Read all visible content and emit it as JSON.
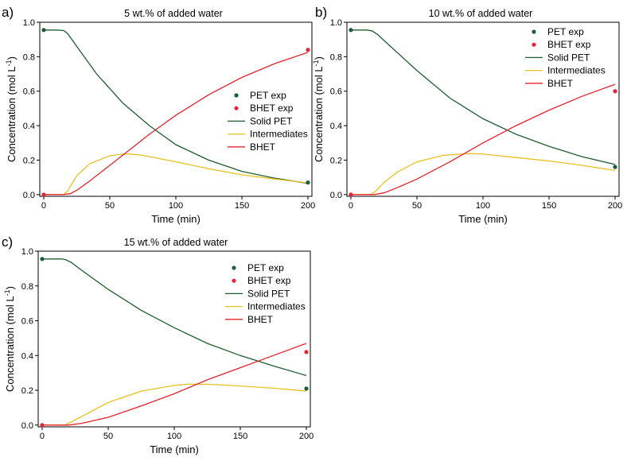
{
  "series_styles": {
    "pet_exp": {
      "color": "#1b5e3b"
    },
    "bhet_exp": {
      "color": "#e32636"
    },
    "solid_pet": {
      "color": "#1e5e2e"
    },
    "intermediates": {
      "color": "#e8c020"
    },
    "bhet": {
      "color": "#e3242b"
    }
  },
  "chart_data": [
    {
      "type": "line",
      "panel": "a)",
      "title": "5 wt.% of added water",
      "xlabel": "Time (min)",
      "ylabel": "Concentration (mol L",
      "ylabel_sup": "-1",
      "ylabel_end": ")",
      "xlim": [
        -3,
        203
      ],
      "ylim": [
        -0.01,
        1.0
      ],
      "xticks": [
        0,
        50,
        100,
        150,
        200
      ],
      "xtick_labels": [
        "0",
        "50",
        "100",
        "150",
        "200"
      ],
      "yticks": [
        0.0,
        0.2,
        0.4,
        0.6,
        0.8,
        1.0
      ],
      "ytick_labels": [
        "0.0",
        "0.2",
        "0.4",
        "0.6",
        "0.8",
        "1.0"
      ],
      "legend": [
        "PET exp",
        "BHET exp",
        "Solid PET",
        "Intermediates",
        "BHET"
      ],
      "series": [
        {
          "name": "PET exp",
          "kind": "scatter",
          "style": "pet_exp",
          "x": [
            0,
            200
          ],
          "y": [
            0.955,
            0.07
          ]
        },
        {
          "name": "BHET exp",
          "kind": "scatter",
          "style": "bhet_exp",
          "x": [
            0,
            200
          ],
          "y": [
            0.0,
            0.84
          ]
        },
        {
          "name": "Solid PET",
          "kind": "line",
          "style": "solid_pet",
          "x": [
            0,
            10,
            15,
            18,
            25,
            40,
            60,
            80,
            100,
            125,
            150,
            175,
            200
          ],
          "y": [
            0.955,
            0.955,
            0.952,
            0.935,
            0.86,
            0.7,
            0.53,
            0.4,
            0.29,
            0.2,
            0.135,
            0.095,
            0.065
          ]
        },
        {
          "name": "Intermediates",
          "kind": "line",
          "style": "intermediates",
          "x": [
            0,
            15,
            18,
            25,
            35,
            50,
            60,
            65,
            75,
            100,
            125,
            150,
            175,
            200
          ],
          "y": [
            0.0,
            0.0,
            0.02,
            0.11,
            0.18,
            0.225,
            0.235,
            0.236,
            0.228,
            0.19,
            0.15,
            0.115,
            0.09,
            0.068
          ]
        },
        {
          "name": "BHET",
          "kind": "line",
          "style": "bhet",
          "x": [
            0,
            15,
            20,
            25,
            35,
            50,
            65,
            80,
            100,
            125,
            150,
            175,
            200
          ],
          "y": [
            0.0,
            0.0,
            0.005,
            0.025,
            0.08,
            0.17,
            0.26,
            0.35,
            0.46,
            0.58,
            0.68,
            0.76,
            0.825
          ]
        }
      ]
    },
    {
      "type": "line",
      "panel": "b)",
      "title": "10 wt.% of added water",
      "xlabel": "Time (min)",
      "ylabel": "Concentration (mol L",
      "ylabel_sup": "-1",
      "ylabel_end": ")",
      "xlim": [
        -3,
        203
      ],
      "ylim": [
        -0.01,
        1.0
      ],
      "xticks": [
        0,
        50,
        100,
        150,
        200
      ],
      "xtick_labels": [
        "0",
        "50",
        "100",
        "150",
        "200"
      ],
      "yticks": [
        0.0,
        0.2,
        0.4,
        0.6,
        0.8,
        1.0
      ],
      "ytick_labels": [
        "0.0",
        "0.2",
        "0.4",
        "0.6",
        "0.8",
        "1.0"
      ],
      "legend": [
        "PET exp",
        "BHET exp",
        "Solid PET",
        "Intermediates",
        "BHET"
      ],
      "series": [
        {
          "name": "PET exp",
          "kind": "scatter",
          "style": "pet_exp",
          "x": [
            0,
            200
          ],
          "y": [
            0.955,
            0.16
          ]
        },
        {
          "name": "BHET exp",
          "kind": "scatter",
          "style": "bhet_exp",
          "x": [
            0,
            200
          ],
          "y": [
            0.0,
            0.6
          ]
        },
        {
          "name": "Solid PET",
          "kind": "line",
          "style": "solid_pet",
          "x": [
            0,
            12,
            16,
            20,
            30,
            50,
            75,
            100,
            125,
            150,
            175,
            200
          ],
          "y": [
            0.955,
            0.955,
            0.95,
            0.93,
            0.86,
            0.72,
            0.56,
            0.44,
            0.35,
            0.28,
            0.22,
            0.175
          ]
        },
        {
          "name": "Intermediates",
          "kind": "line",
          "style": "intermediates",
          "x": [
            0,
            15,
            18,
            25,
            35,
            50,
            70,
            90,
            100,
            125,
            150,
            175,
            200
          ],
          "y": [
            0.0,
            0.0,
            0.015,
            0.07,
            0.13,
            0.19,
            0.228,
            0.238,
            0.235,
            0.215,
            0.195,
            0.17,
            0.14
          ]
        },
        {
          "name": "BHET",
          "kind": "line",
          "style": "bhet",
          "x": [
            0,
            18,
            25,
            35,
            50,
            75,
            100,
            125,
            150,
            175,
            200
          ],
          "y": [
            0.0,
            0.0,
            0.01,
            0.04,
            0.09,
            0.19,
            0.3,
            0.4,
            0.49,
            0.57,
            0.64
          ]
        }
      ]
    },
    {
      "type": "line",
      "panel": "c)",
      "title": "15 wt.% of added water",
      "xlabel": "Time (min)",
      "ylabel": "Concentration (mol L",
      "ylabel_sup": "-1",
      "ylabel_end": ")",
      "xlim": [
        -3,
        203
      ],
      "ylim": [
        -0.01,
        1.0
      ],
      "xticks": [
        0,
        50,
        100,
        150,
        200
      ],
      "xtick_labels": [
        "0",
        "50",
        "100",
        "150",
        "200"
      ],
      "yticks": [
        0.0,
        0.2,
        0.4,
        0.6,
        0.8,
        1.0
      ],
      "ytick_labels": [
        "0.0",
        "0.2",
        "0.4",
        "0.6",
        "0.8",
        "1.0"
      ],
      "legend": [
        "PET exp",
        "BHET exp",
        "Solid PET",
        "Intermediates",
        "BHET"
      ],
      "series": [
        {
          "name": "PET exp",
          "kind": "scatter",
          "style": "pet_exp",
          "x": [
            0,
            200
          ],
          "y": [
            0.955,
            0.21
          ]
        },
        {
          "name": "BHET exp",
          "kind": "scatter",
          "style": "bhet_exp",
          "x": [
            0,
            200
          ],
          "y": [
            0.0,
            0.42
          ]
        },
        {
          "name": "Solid PET",
          "kind": "line",
          "style": "solid_pet",
          "x": [
            0,
            15,
            18,
            22,
            30,
            50,
            75,
            100,
            125,
            150,
            175,
            200
          ],
          "y": [
            0.955,
            0.955,
            0.95,
            0.935,
            0.89,
            0.78,
            0.66,
            0.56,
            0.47,
            0.4,
            0.34,
            0.285
          ]
        },
        {
          "name": "Intermediates",
          "kind": "line",
          "style": "intermediates",
          "x": [
            0,
            17,
            20,
            30,
            50,
            75,
            100,
            110,
            125,
            150,
            175,
            200
          ],
          "y": [
            0.0,
            0.0,
            0.01,
            0.05,
            0.13,
            0.195,
            0.228,
            0.235,
            0.235,
            0.225,
            0.212,
            0.195
          ]
        },
        {
          "name": "BHET",
          "kind": "line",
          "style": "bhet",
          "x": [
            0,
            20,
            30,
            50,
            75,
            100,
            125,
            150,
            175,
            200
          ],
          "y": [
            0.0,
            0.0,
            0.01,
            0.045,
            0.11,
            0.18,
            0.26,
            0.33,
            0.4,
            0.47
          ]
        }
      ]
    }
  ]
}
